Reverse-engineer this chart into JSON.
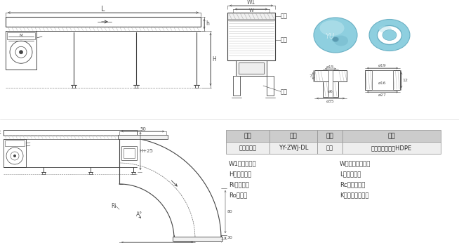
{
  "bg_color": "#ffffff",
  "line_color": "#444444",
  "light_line": "#999999",
  "dim_color": "#555555",
  "table_header_bg": "#cccccc",
  "table_row_bg": "#eeeeee",
  "table_border": "#999999",
  "table_headers": [
    "名称",
    "规格",
    "颜色",
    "材质"
  ],
  "table_row": [
    "转弯机导轮",
    "YY-ZWJ-DL",
    "白色",
    "超高分子聚乙烯HDPE"
  ],
  "legend_left": [
    "W1：机身宽度",
    "H：机身高度",
    "Ri：内半径",
    "Ro：外径"
  ],
  "legend_right": [
    "W：皮带有效宽度",
    "L：机身长度",
    "Rc：中心半径",
    "K：输送台面厂度"
  ],
  "label_peidai": "皮带",
  "label_jishen": "机身",
  "label_zhitui": "支腿",
  "bearing_blue": "#8ecfdf",
  "bearing_blue_dark": "#6ab0c4",
  "bearing_blue_light": "#b8e4ee"
}
